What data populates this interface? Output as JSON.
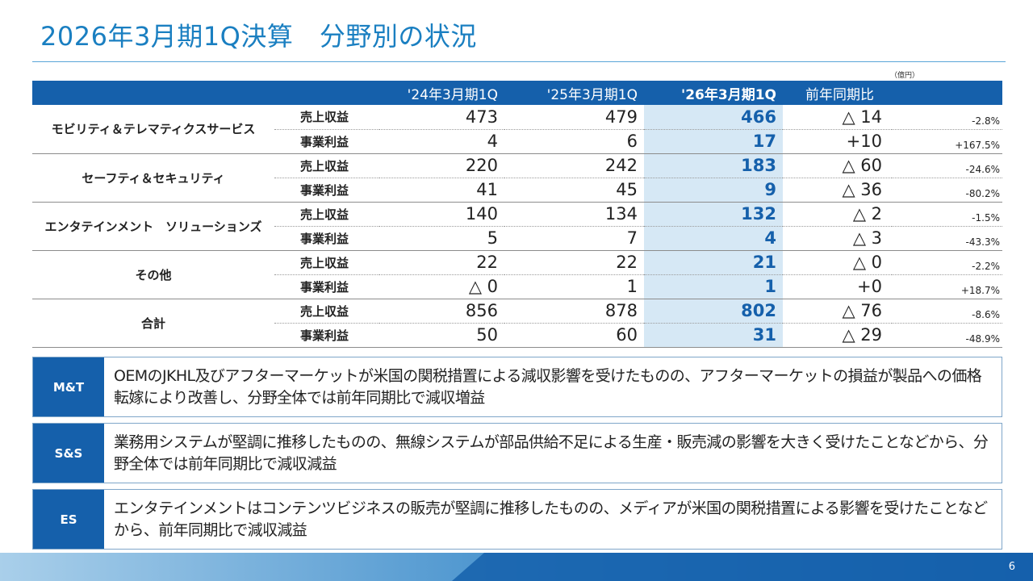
{
  "title": "2026年3月期1Q決算　分野別の状況",
  "unit_note": "（億円）",
  "table": {
    "headers": [
      "'24年3月期1Q",
      "'25年3月期1Q",
      "'26年3月期1Q",
      "前年同期比"
    ],
    "rows": [
      {
        "segment": "モビリティ＆テレマティクスサービス",
        "metric": "売上収益",
        "v24": "473",
        "v25": "479",
        "v26": "466",
        "yoy": "△ 14",
        "pct": "-2.8%"
      },
      {
        "segment": "",
        "metric": "事業利益",
        "v24": "4",
        "v25": "6",
        "v26": "17",
        "yoy": "+10",
        "pct": "+167.5%"
      },
      {
        "segment": "セーフティ＆セキュリティ",
        "metric": "売上収益",
        "v24": "220",
        "v25": "242",
        "v26": "183",
        "yoy": "△ 60",
        "pct": "-24.6%"
      },
      {
        "segment": "",
        "metric": "事業利益",
        "v24": "41",
        "v25": "45",
        "v26": "9",
        "yoy": "△ 36",
        "pct": "-80.2%"
      },
      {
        "segment": "エンタテインメント　ソリューションズ",
        "metric": "売上収益",
        "v24": "140",
        "v25": "134",
        "v26": "132",
        "yoy": "△ 2",
        "pct": "-1.5%"
      },
      {
        "segment": "",
        "metric": "事業利益",
        "v24": "5",
        "v25": "7",
        "v26": "4",
        "yoy": "△ 3",
        "pct": "-43.3%"
      },
      {
        "segment": "その他",
        "metric": "売上収益",
        "v24": "22",
        "v25": "22",
        "v26": "21",
        "yoy": "△ 0",
        "pct": "-2.2%"
      },
      {
        "segment": "",
        "metric": "事業利益",
        "v24": "△ 0",
        "v25": "1",
        "v26": "1",
        "yoy": "+0",
        "pct": "+18.7%"
      },
      {
        "segment": "合計",
        "metric": "売上収益",
        "v24": "856",
        "v25": "878",
        "v26": "802",
        "yoy": "△ 76",
        "pct": "-8.6%"
      },
      {
        "segment": "",
        "metric": "事業利益",
        "v24": "50",
        "v25": "60",
        "v26": "31",
        "yoy": "△ 29",
        "pct": "-48.9%"
      }
    ]
  },
  "comments": [
    {
      "tag": "M&T",
      "text": "OEMのJKHL及びアフターマーケットが米国の関税措置による減収影響を受けたものの、アフターマーケットの損益が製品への価格転嫁により改善し、分野全体では前年同期比で減収増益"
    },
    {
      "tag": "S&S",
      "text": "業務用システムが堅調に推移したものの、無線システムが部品供給不足による生産・販売減の影響を大きく受けたことなどから、分野全体では前年同期比で減収減益"
    },
    {
      "tag": "ES",
      "text": "エンタテインメントはコンテンツビジネスの販売が堅調に推移したものの、メディアが米国の関税措置による影響を受けたことなどから、前年同期比で減収減益"
    }
  ],
  "page_number": "6",
  "colors": {
    "accent": "#1560ab",
    "title": "#1a7fc1",
    "highlight": "#d6e8f5"
  }
}
